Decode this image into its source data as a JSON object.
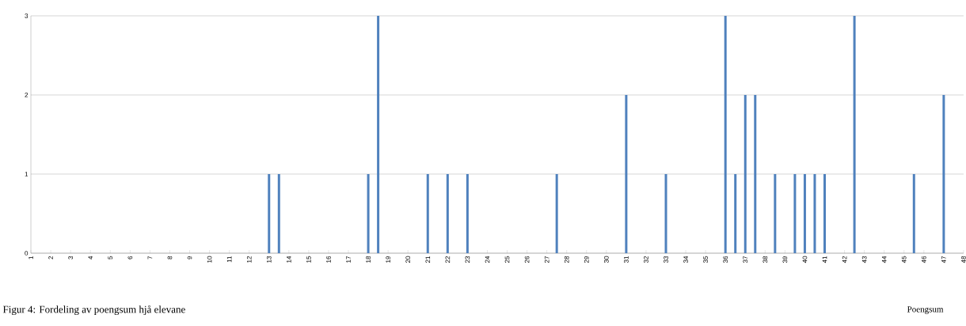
{
  "chart_data": {
    "type": "bar",
    "xlabel": "Poengsum",
    "annotations": [
      "Figur 4: Fordeling av poengsum hjå elevane"
    ],
    "color": "#4f81bd",
    "grid": "y",
    "x": [
      13,
      13.5,
      18,
      18.5,
      21,
      22,
      23,
      27.5,
      31,
      33,
      36,
      36.5,
      37,
      37.5,
      38.5,
      39.5,
      40,
      40.5,
      41,
      42.5,
      45.5,
      47
    ],
    "values": [
      1,
      1,
      1,
      3,
      1,
      1,
      1,
      1,
      2,
      1,
      3,
      1,
      2,
      2,
      1,
      1,
      1,
      1,
      1,
      3,
      1,
      2
    ],
    "xlim": [
      1,
      48
    ],
    "xticks": [
      1,
      2,
      3,
      4,
      5,
      6,
      7,
      8,
      9,
      10,
      11,
      12,
      13,
      14,
      15,
      16,
      17,
      18,
      19,
      20,
      21,
      22,
      23,
      24,
      25,
      26,
      27,
      28,
      29,
      30,
      31,
      32,
      33,
      34,
      35,
      36,
      37,
      38,
      39,
      40,
      41,
      42,
      43,
      44,
      45,
      46,
      47,
      48
    ],
    "ylim": [
      0,
      3
    ],
    "yticks": [
      0,
      1,
      2,
      3
    ]
  }
}
